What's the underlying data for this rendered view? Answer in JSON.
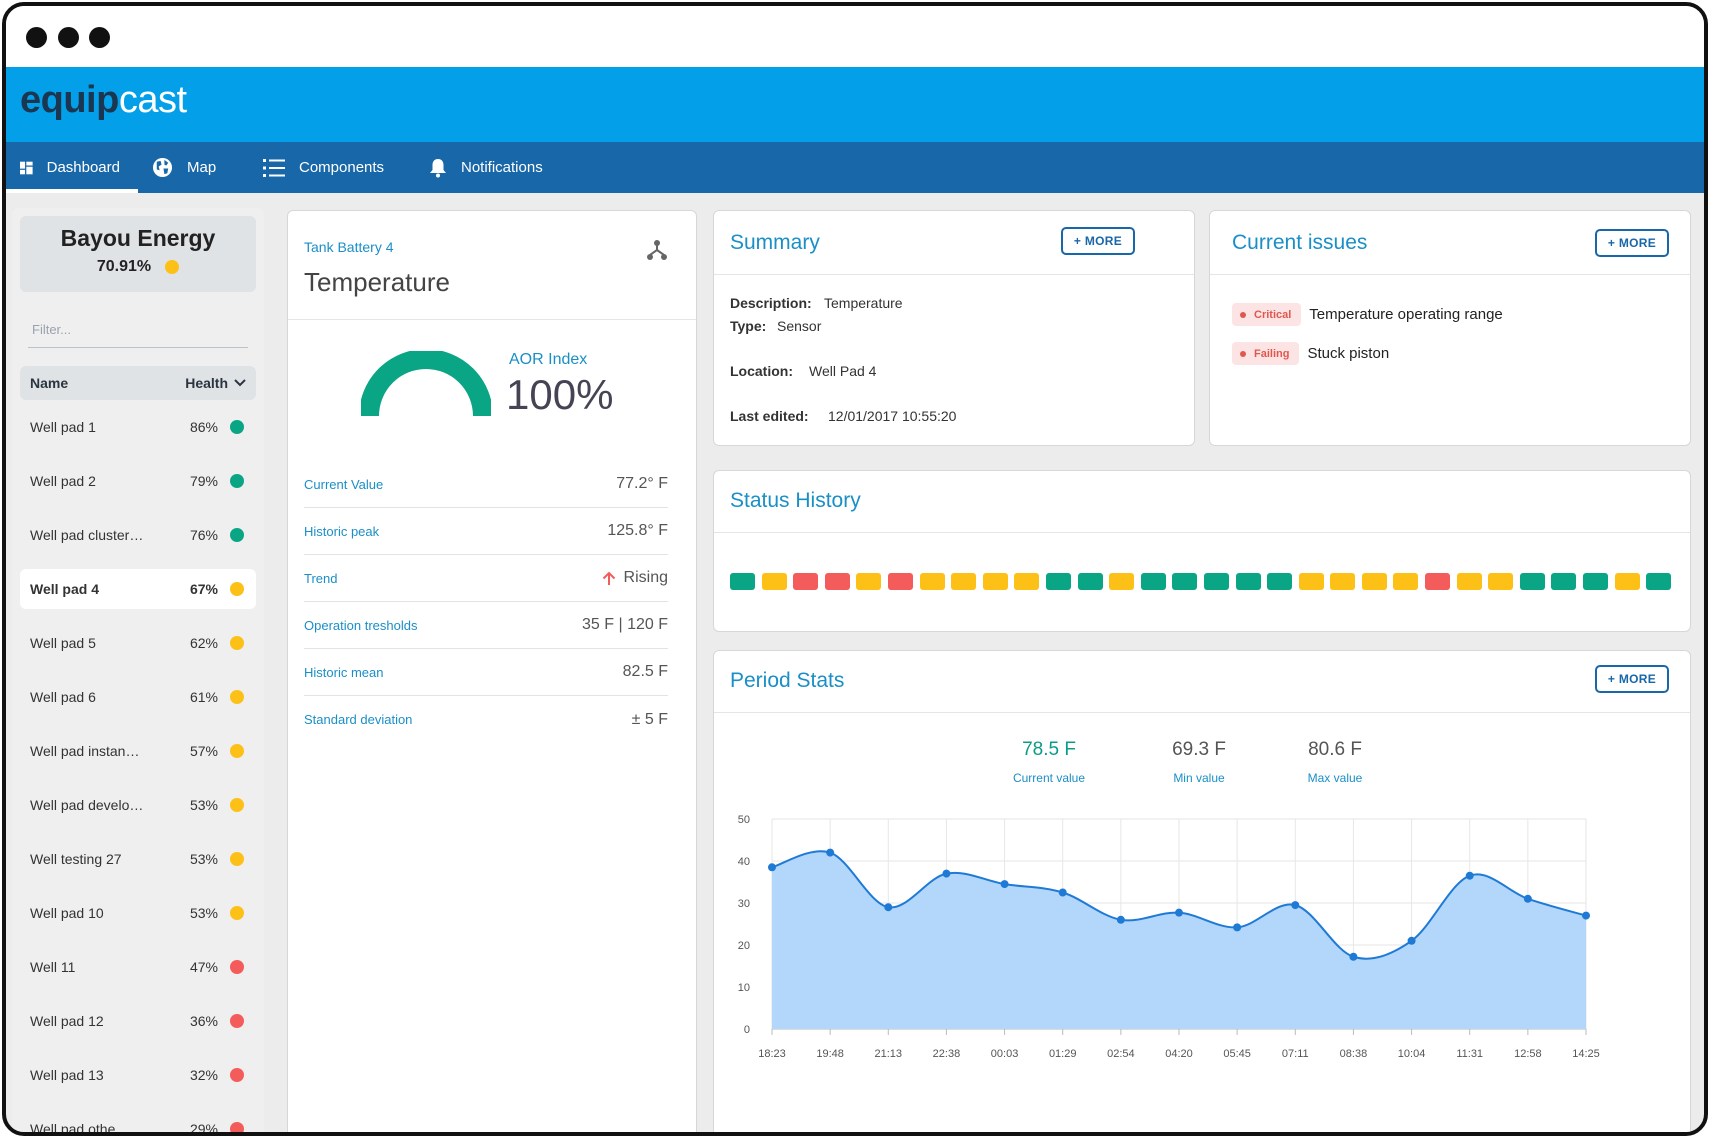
{
  "app": {
    "logo_bold": "equip",
    "logo_light": "cast"
  },
  "nav": [
    {
      "label": "Dashboard",
      "icon": "dashboard-grid-icon",
      "active": true
    },
    {
      "label": "Map",
      "icon": "globe-icon",
      "active": false
    },
    {
      "label": "Components",
      "icon": "list-icon",
      "active": false
    },
    {
      "label": "Notifications",
      "icon": "bell-icon",
      "active": false
    }
  ],
  "sidebar": {
    "company": "Bayou Energy",
    "company_health": "70.91%",
    "company_status": "yellow",
    "filter_placeholder": "Filter...",
    "col_name": "Name",
    "col_health": "Health",
    "rows": [
      {
        "name": "Well pad 1",
        "pct": "86%",
        "status": "green"
      },
      {
        "name": "Well pad 2",
        "pct": "79%",
        "status": "green"
      },
      {
        "name": "Well pad cluster…",
        "pct": "76%",
        "status": "green"
      },
      {
        "name": "Well pad 4",
        "pct": "67%",
        "status": "yellow",
        "selected": true
      },
      {
        "name": "Well pad 5",
        "pct": "62%",
        "status": "yellow"
      },
      {
        "name": "Well pad 6",
        "pct": "61%",
        "status": "yellow"
      },
      {
        "name": "Well pad instan…",
        "pct": "57%",
        "status": "yellow"
      },
      {
        "name": "Well pad develo…",
        "pct": "53%",
        "status": "yellow"
      },
      {
        "name": "Well testing 27",
        "pct": "53%",
        "status": "yellow"
      },
      {
        "name": "Well pad 10",
        "pct": "53%",
        "status": "yellow"
      },
      {
        "name": "Well 11",
        "pct": "47%",
        "status": "red"
      },
      {
        "name": "Well pad 12",
        "pct": "36%",
        "status": "red"
      },
      {
        "name": "Well pad 13",
        "pct": "32%",
        "status": "red"
      },
      {
        "name": "Well pad othe…",
        "pct": "29%",
        "status": "red"
      }
    ]
  },
  "detail": {
    "subtitle": "Tank Battery 4",
    "title": "Temperature",
    "aor_label": "AOR Index",
    "aor_value": "100%",
    "aor_fraction": 1.0,
    "stats": [
      {
        "key": "Current Value",
        "value": "77.2° F"
      },
      {
        "key": "Historic peak",
        "value": "125.8° F"
      },
      {
        "key": "Trend",
        "value": "Rising",
        "icon": "arrow-up-icon"
      },
      {
        "key": "Operation tresholds",
        "value": "35 F | 120 F"
      },
      {
        "key": "Historic mean",
        "value": "82.5 F"
      },
      {
        "key": "Standard deviation",
        "value": "± 5 F"
      }
    ]
  },
  "summary": {
    "title": "Summary",
    "more_label": "+ MORE",
    "description_label": "Description:",
    "description": "Temperature",
    "type_label": "Type:",
    "type": "Sensor",
    "location_label": "Location:",
    "location": "Well Pad 4",
    "edited_label": "Last edited:",
    "edited": "12/01/2017 10:55:20"
  },
  "issues": {
    "title": "Current issues",
    "more_label": "+ MORE",
    "items": [
      {
        "badge": "Critical",
        "text": "Temperature operating range"
      },
      {
        "badge": "Failing",
        "text": "Stuck piston"
      }
    ]
  },
  "status_history": {
    "title": "Status History",
    "blocks": [
      "g",
      "y",
      "r",
      "r",
      "y",
      "r",
      "y",
      "y",
      "y",
      "y",
      "g",
      "g",
      "y",
      "g",
      "g",
      "g",
      "g",
      "g",
      "y",
      "y",
      "y",
      "y",
      "r",
      "y",
      "y",
      "g",
      "g",
      "g",
      "y",
      "g"
    ]
  },
  "period": {
    "title": "Period Stats",
    "more_label": "+ MORE",
    "stats": [
      {
        "value": "78.5 F",
        "label": "Current value"
      },
      {
        "value": "69.3 F",
        "label": "Min value"
      },
      {
        "value": "80.6 F",
        "label": "Max value"
      }
    ]
  },
  "colors": {
    "green": "#0aa585",
    "yellow": "#fdc016",
    "red": "#f45c5c",
    "brand": "#03a0e9",
    "nav": "#1867a9",
    "chart_line": "#1f7ad6",
    "chart_fill": "#b3d7fb"
  },
  "chart_data": {
    "type": "area",
    "x": [
      "18:23",
      "19:48",
      "21:13",
      "22:38",
      "00:03",
      "01:29",
      "02:54",
      "04:20",
      "05:45",
      "07:11",
      "08:38",
      "10:04",
      "11:31",
      "12:58",
      "14:25"
    ],
    "values": [
      38.5,
      42,
      29,
      37,
      34.5,
      32.5,
      26,
      27.7,
      24.2,
      29.5,
      17.2,
      21,
      36.5,
      31,
      27
    ],
    "ylim": [
      0,
      50
    ],
    "yticks": [
      0,
      10,
      20,
      30,
      40,
      50
    ],
    "grid": true
  }
}
